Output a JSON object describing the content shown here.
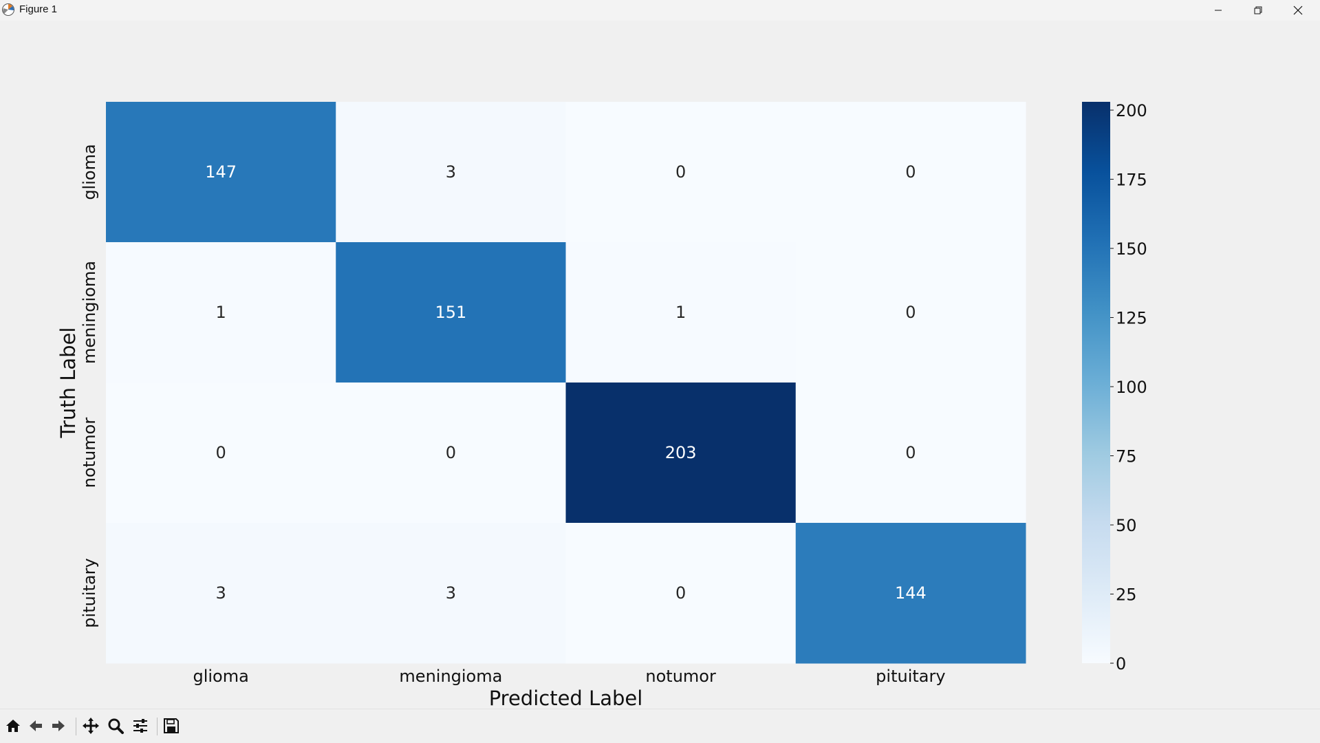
{
  "window": {
    "title": "Figure 1",
    "icon": "matplotlib-logo-icon",
    "controls": [
      "minimize-icon",
      "maximize-icon",
      "close-icon"
    ]
  },
  "toolbar": {
    "buttons": [
      "home-icon",
      "back-arrow-icon",
      "forward-arrow-icon",
      "pan-icon",
      "zoom-icon",
      "configure-subplots-icon",
      "save-icon"
    ]
  },
  "chart_data": {
    "type": "heatmap",
    "title": "",
    "xlabel": "Predicted Label",
    "ylabel": "Truth Label",
    "x_categories": [
      "glioma",
      "meningioma",
      "notumor",
      "pituitary"
    ],
    "y_categories": [
      "glioma",
      "meningioma",
      "notumor",
      "pituitary"
    ],
    "values": [
      [
        147,
        3,
        0,
        0
      ],
      [
        1,
        151,
        1,
        0
      ],
      [
        0,
        0,
        203,
        0
      ],
      [
        3,
        3,
        0,
        144
      ]
    ],
    "colormap": "Blues",
    "colorbar": {
      "range": [
        0,
        203
      ],
      "ticks": [
        0,
        25,
        50,
        75,
        100,
        125,
        150,
        175,
        200
      ]
    },
    "annotate": true
  }
}
